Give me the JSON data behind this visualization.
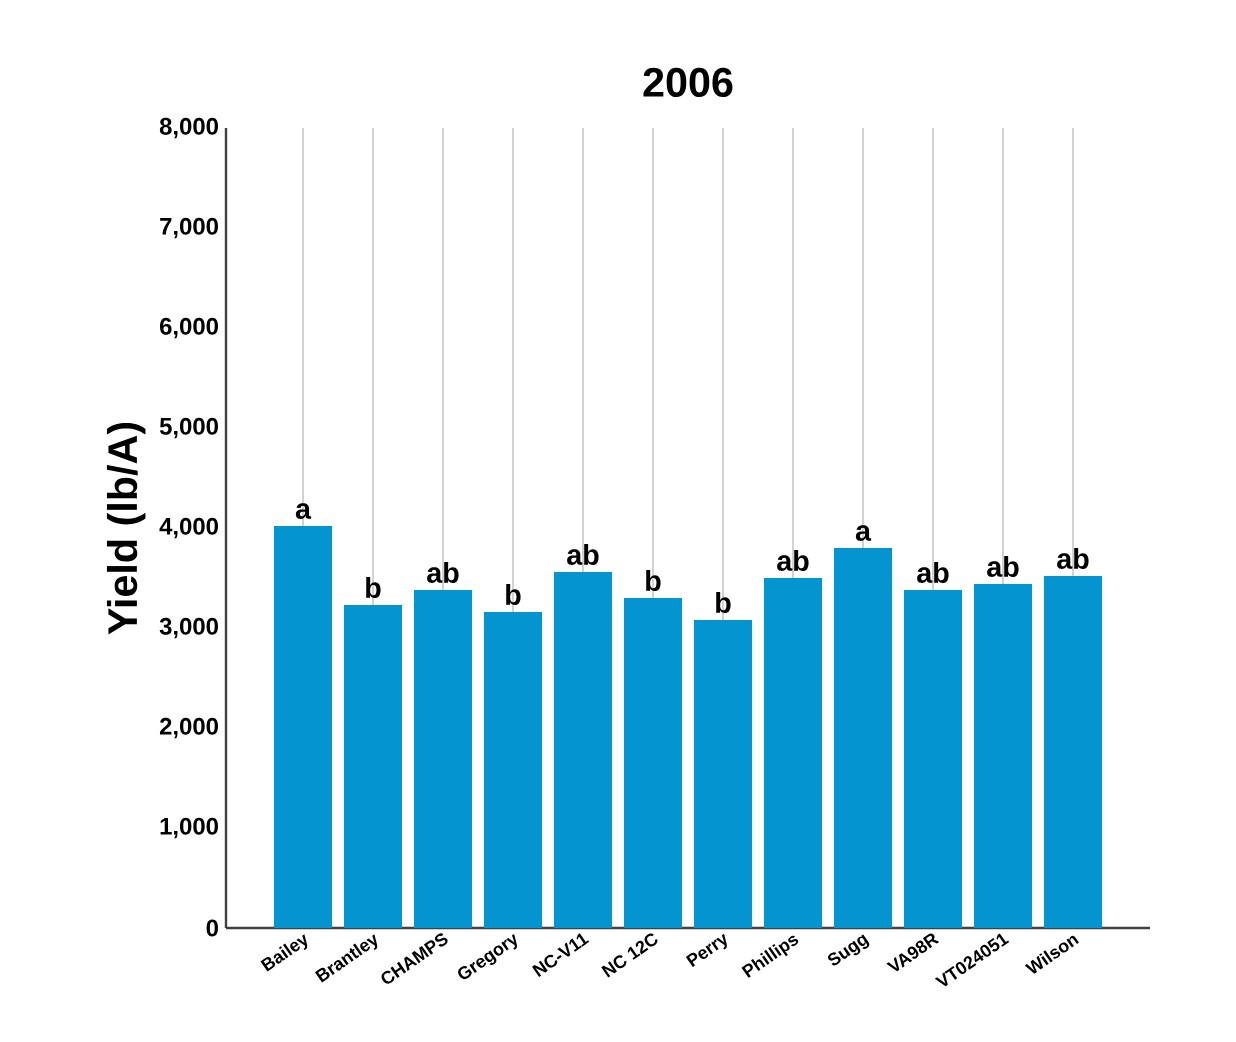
{
  "chart_data": {
    "type": "bar",
    "title": "2006",
    "ylabel": "Yield (lb/A)",
    "categories": [
      "Bailey",
      "Brantley",
      "CHAMPS",
      "Gregory",
      "NC-V11",
      "NC 12C",
      "Perry",
      "Phillips",
      "Sugg",
      "VA98R",
      "VT024051",
      "Wilson"
    ],
    "values": [
      4020,
      3230,
      3380,
      3160,
      3560,
      3300,
      3080,
      3500,
      3800,
      3380,
      3440,
      3520
    ],
    "value_labels": [
      "a",
      "b",
      "ab",
      "b",
      "ab",
      "b",
      "b",
      "ab",
      "a",
      "ab",
      "ab",
      "ab"
    ],
    "color": "#0494d0",
    "ylim": [
      0,
      8000
    ],
    "yticks": [
      {
        "value": 0,
        "label": "0"
      },
      {
        "value": 1000,
        "label": "1,000"
      },
      {
        "value": 2000,
        "label": "2,000"
      },
      {
        "value": 3000,
        "label": "3,000"
      },
      {
        "value": 4000,
        "label": "4,000"
      },
      {
        "value": 5000,
        "label": "5,000"
      },
      {
        "value": 6000,
        "label": "6,000"
      },
      {
        "value": 7000,
        "label": "7,000"
      },
      {
        "value": 8000,
        "label": "8,000"
      }
    ],
    "grid": "x"
  }
}
